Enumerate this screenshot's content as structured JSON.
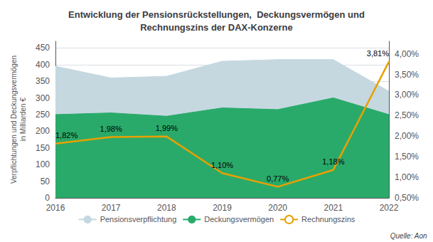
{
  "chart_data": {
    "type": "area",
    "title": "Entwicklung der Pensionsrückstellungen,  Deckungsvermögen und\nRechnungszins der DAX-Konzerne",
    "ylabel": "Verpflichtungen und Deckungsvermögen\nin Milliarden €",
    "annotation": "Quelle: Aon",
    "x": [
      2016,
      2017,
      2018,
      2019,
      2020,
      2021,
      2022
    ],
    "xlim": [
      2016,
      2022
    ],
    "xticks": [
      2016,
      2017,
      2018,
      2019,
      2020,
      2021,
      2022
    ],
    "ylim": [
      0,
      470
    ],
    "yticks": [
      0,
      50,
      100,
      150,
      200,
      250,
      300,
      350,
      400,
      450
    ],
    "y2lim": [
      0.5,
      4.305
    ],
    "y2ticks": [
      {
        "value": 0.5,
        "label": "0,50%"
      },
      {
        "value": 1.0,
        "label": "1,00%"
      },
      {
        "value": 1.5,
        "label": "1,50%"
      },
      {
        "value": 2.0,
        "label": "2,00%"
      },
      {
        "value": 2.5,
        "label": "2,50%"
      },
      {
        "value": 3.0,
        "label": "3,00%"
      },
      {
        "value": 3.5,
        "label": "3,50%"
      },
      {
        "value": 4.0,
        "label": "4,00%"
      }
    ],
    "grid": true,
    "legend": "bottom",
    "series": [
      {
        "name": "Pensionsverpflichtung",
        "type": "area",
        "color": "#c5d8e0",
        "values": [
          395,
          360,
          365,
          410,
          415,
          415,
          320
        ]
      },
      {
        "name": "Deckungsvermögen",
        "type": "area",
        "color": "#2aaa6a",
        "values": [
          250,
          255,
          245,
          270,
          265,
          300,
          250
        ]
      },
      {
        "name": "Rechnungszins",
        "type": "line",
        "axis": "y2",
        "color": "#e8a000",
        "values": [
          1.82,
          1.98,
          1.99,
          1.1,
          0.77,
          1.18,
          3.81
        ],
        "value_labels": [
          "1,82%",
          "1,98%",
          "1,99%",
          "1,10%",
          "0,77%",
          "1,18%",
          "3,81%"
        ]
      }
    ]
  }
}
